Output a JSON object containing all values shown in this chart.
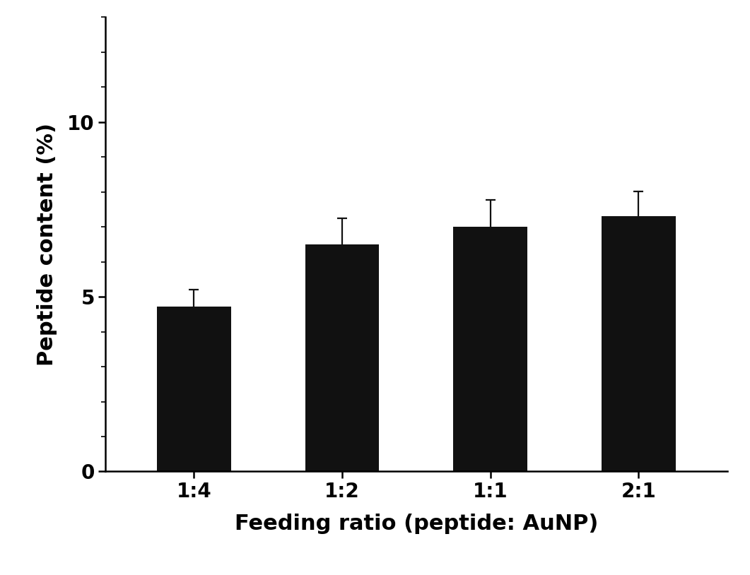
{
  "categories": [
    "1:4",
    "1:2",
    "1:1",
    "2:1"
  ],
  "values": [
    4.72,
    6.5,
    7.0,
    7.3
  ],
  "errors": [
    0.48,
    0.75,
    0.78,
    0.72
  ],
  "bar_color": "#111111",
  "error_color": "#111111",
  "ylabel": "Peptide content (%)",
  "xlabel": "Feeding ratio (peptide: AuNP)",
  "ylim": [
    0,
    13
  ],
  "yticks": [
    0,
    5,
    10
  ],
  "bar_width": 0.5,
  "background_color": "#ffffff",
  "ylabel_fontsize": 22,
  "xlabel_fontsize": 22,
  "tick_fontsize": 20,
  "capsize": 5,
  "error_linewidth": 1.6,
  "spine_linewidth": 1.8
}
